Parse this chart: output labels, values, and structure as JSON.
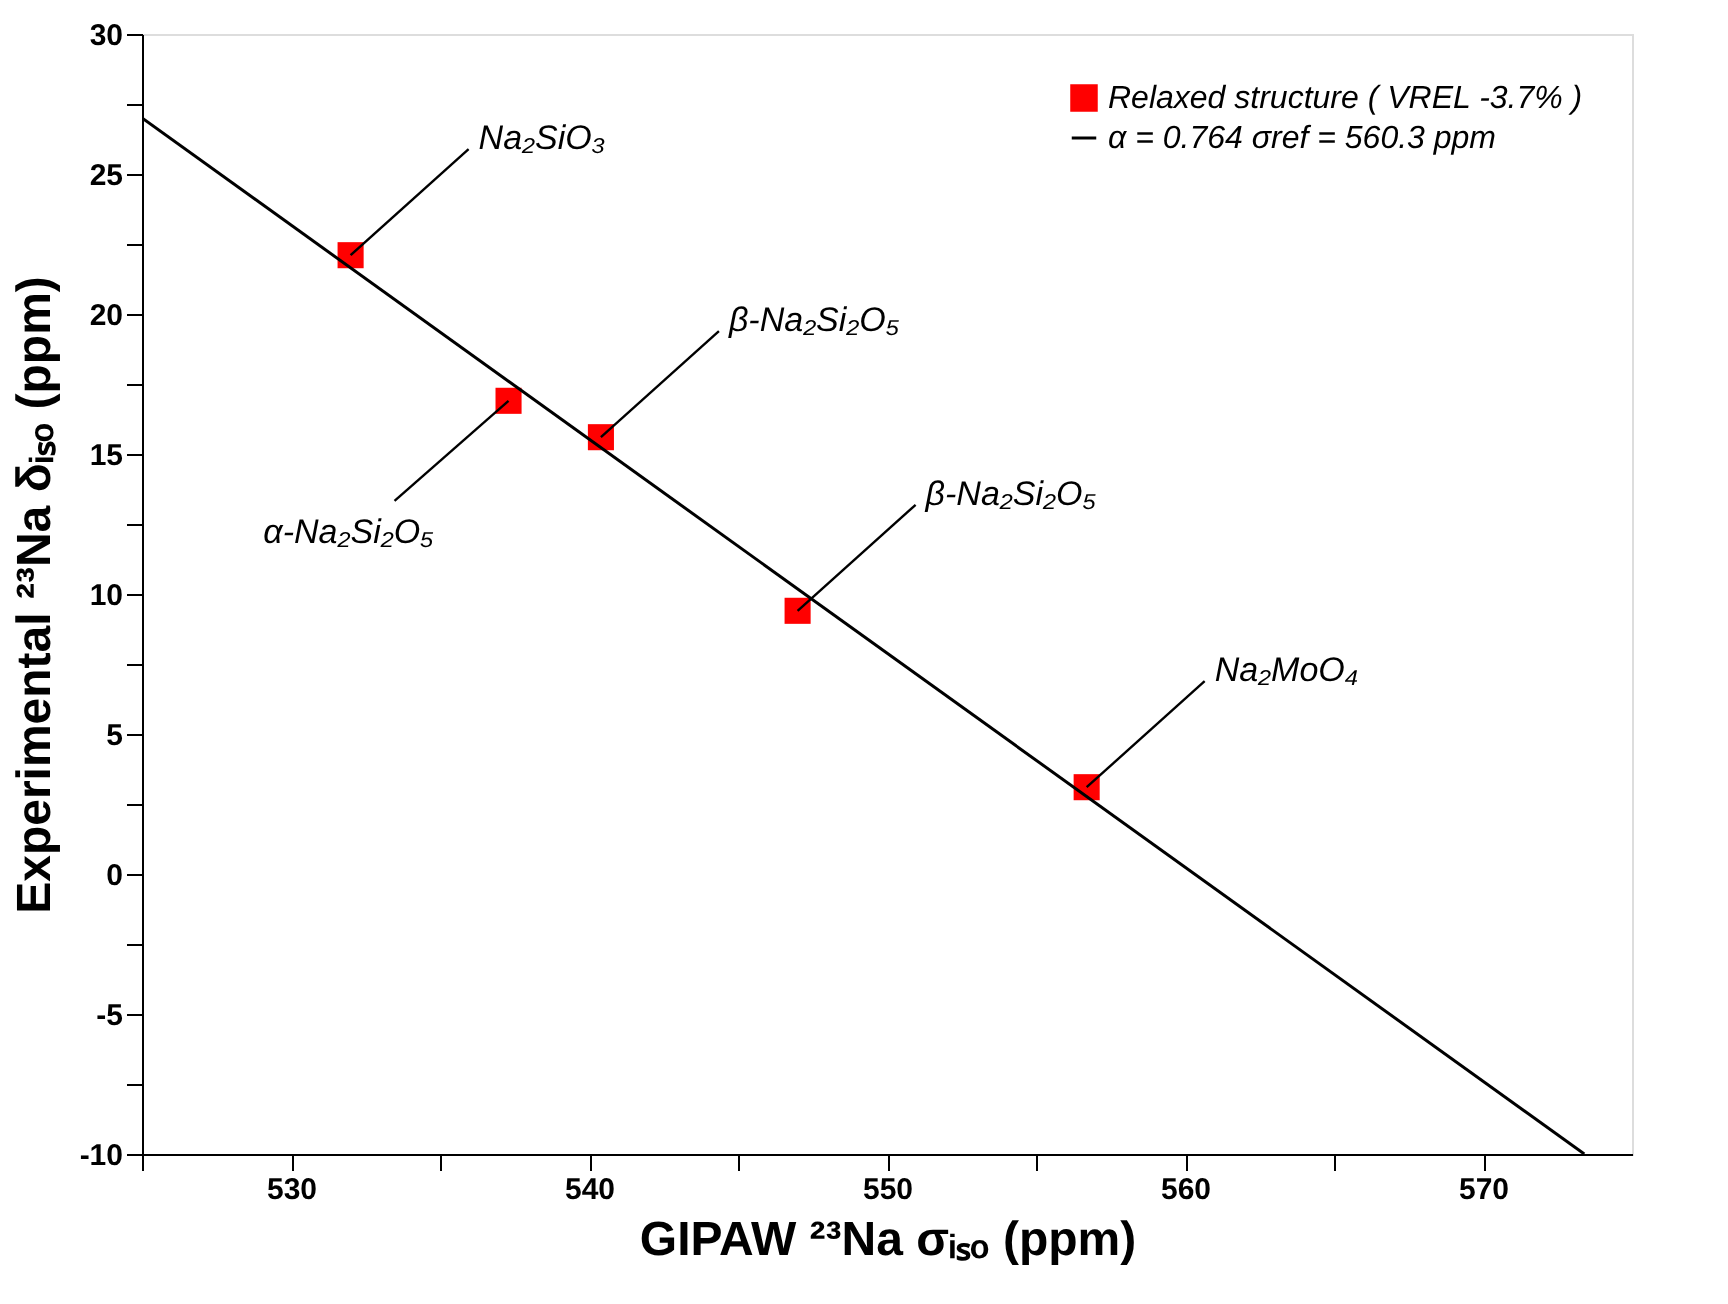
{
  "chart_data": {
    "type": "scatter",
    "xlabel": "GIPAW ²³Na σᵢₛₒ (ppm)",
    "ylabel": "Experimental ²³Na δᵢₛₒ (ppm)",
    "xlim": [
      525,
      575
    ],
    "ylim": [
      -10,
      30
    ],
    "xticks": [
      {
        "value": 525,
        "label": null
      },
      530,
      {
        "value": 535,
        "label": null
      },
      540,
      {
        "value": 545,
        "label": null
      },
      550,
      {
        "value": 555,
        "label": null
      },
      560,
      {
        "value": 565,
        "label": null
      },
      570
    ],
    "yticks": [
      -10,
      {
        "value": -7.5,
        "label": null
      },
      -5,
      {
        "value": -2.5,
        "label": null
      },
      0,
      {
        "value": 2.5,
        "label": null
      },
      5,
      {
        "value": 7.5,
        "label": null
      },
      10,
      {
        "value": 12.5,
        "label": null
      },
      15,
      {
        "value": 17.5,
        "label": null
      },
      20,
      {
        "value": 22.5,
        "label": null
      },
      25,
      {
        "value": 27.5,
        "label": null
      },
      30
    ],
    "series": [
      {
        "name": "Relaxed structure ( VREL -3.7% )",
        "color": "#ff0000",
        "marker": "square",
        "x": [
          532.0,
          537.3,
          540.4,
          547.0,
          556.7
        ],
        "values": [
          22.1,
          16.9,
          15.6,
          9.4,
          3.1
        ]
      },
      {
        "name": "α = 0.764 σref = 560.3 ppm",
        "type": "line",
        "color": "#000000",
        "line_style": "solid",
        "x": [
          525,
          573.4
        ],
        "values": [
          27.0,
          -10
        ]
      }
    ],
    "annotations": [
      {
        "text": "Na₂SiO₃",
        "x": 532.0,
        "y": 22.1
      },
      {
        "text": "α-Na₂Si₂O₅",
        "x": 537.3,
        "y": 16.9
      },
      {
        "text": "β-Na₂Si₂O₅",
        "x": 540.4,
        "y": 15.6
      },
      {
        "text": "β-Na₂Si₂O₅",
        "x": 547.0,
        "y": 9.4
      },
      {
        "text": "Na₂MoO₄",
        "x": 556.7,
        "y": 3.1
      }
    ],
    "legend": "top right",
    "grid": false
  }
}
